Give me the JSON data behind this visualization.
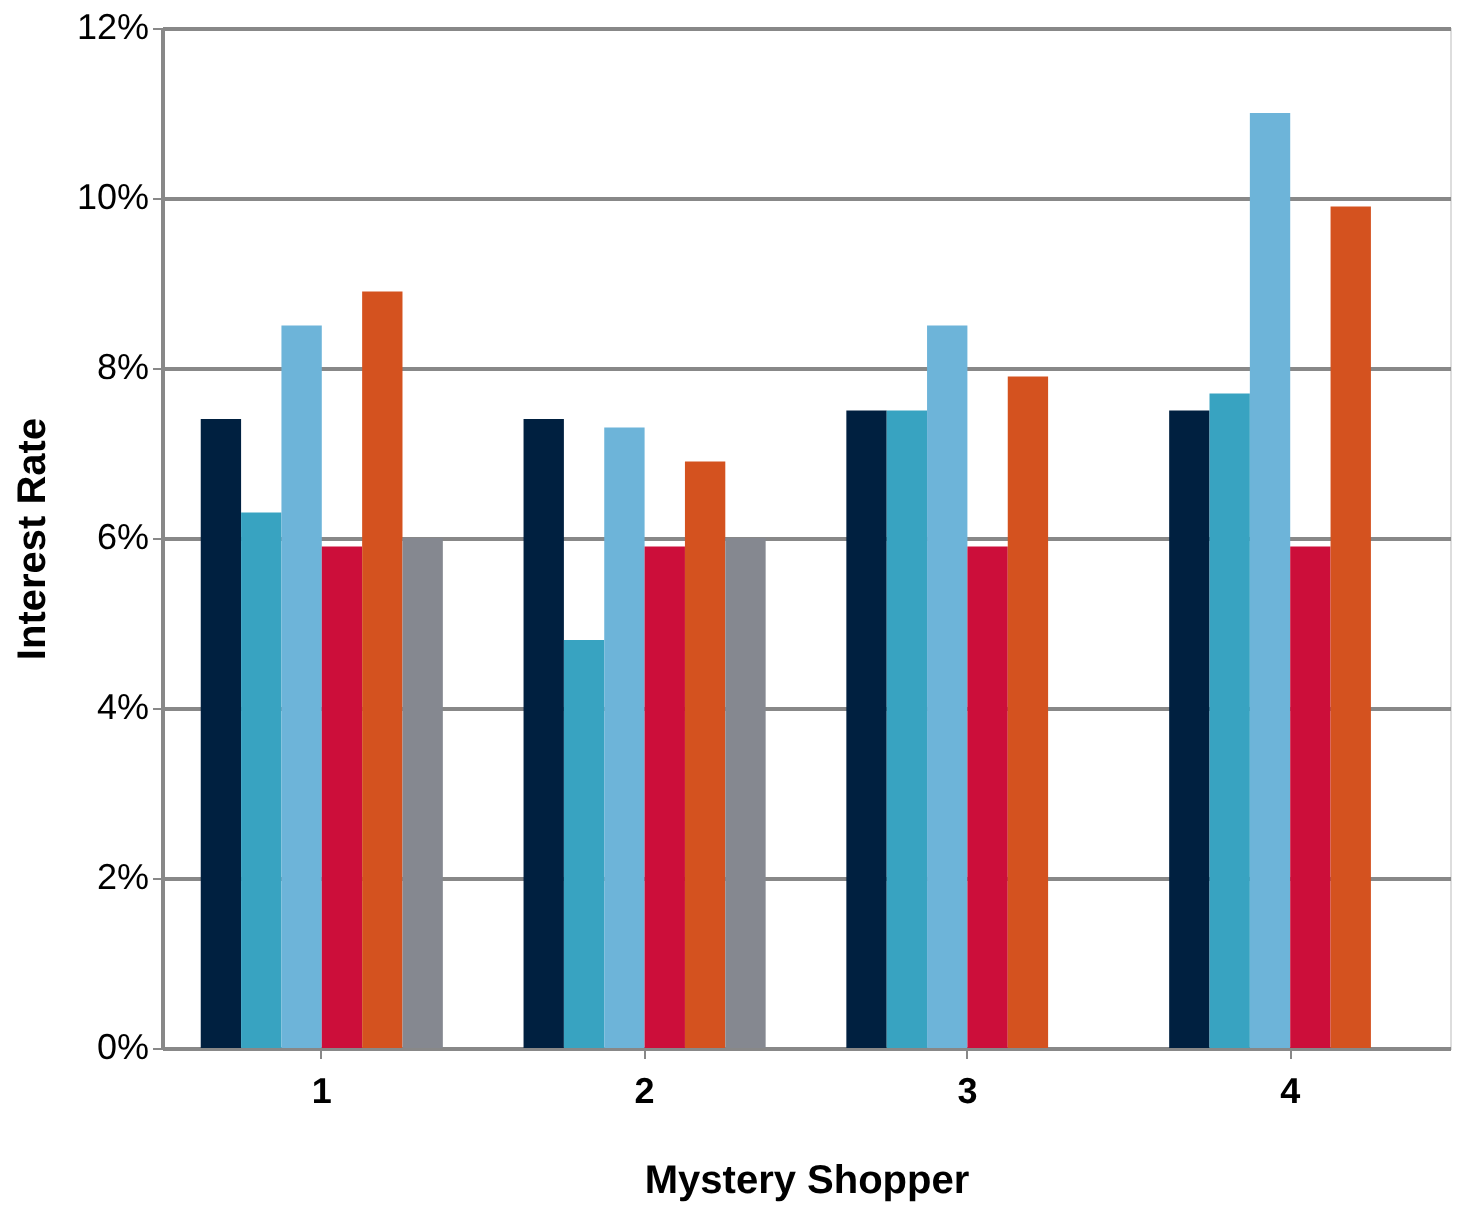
{
  "chart_data": {
    "type": "bar",
    "xlabel": "Mystery Shopper",
    "ylabel": "Interest Rate",
    "categories": [
      "1",
      "2",
      "3",
      "4"
    ],
    "series": [
      {
        "color": "#002040",
        "values": [
          7.4,
          7.4,
          7.5,
          7.5
        ]
      },
      {
        "color": "#38a3c1",
        "values": [
          6.3,
          4.8,
          7.5,
          7.7
        ]
      },
      {
        "color": "#6db4d9",
        "values": [
          8.5,
          7.3,
          8.5,
          11.0
        ]
      },
      {
        "color": "#cc0e3a",
        "values": [
          5.9,
          5.9,
          5.9,
          5.9
        ]
      },
      {
        "color": "#d4521f",
        "values": [
          8.9,
          6.9,
          7.9,
          9.9
        ]
      },
      {
        "color": "#858890",
        "values": [
          6.0,
          6.0,
          null,
          null
        ]
      }
    ],
    "ylim": [
      0,
      12
    ],
    "yticks": [
      {
        "value": 0,
        "label": "0%"
      },
      {
        "value": 2,
        "label": "2%"
      },
      {
        "value": 4,
        "label": "4%"
      },
      {
        "value": 6,
        "label": "6%"
      },
      {
        "value": 8,
        "label": "8%"
      },
      {
        "value": 10,
        "label": "10%"
      },
      {
        "value": 12,
        "label": "12%"
      }
    ],
    "grid": "y"
  }
}
